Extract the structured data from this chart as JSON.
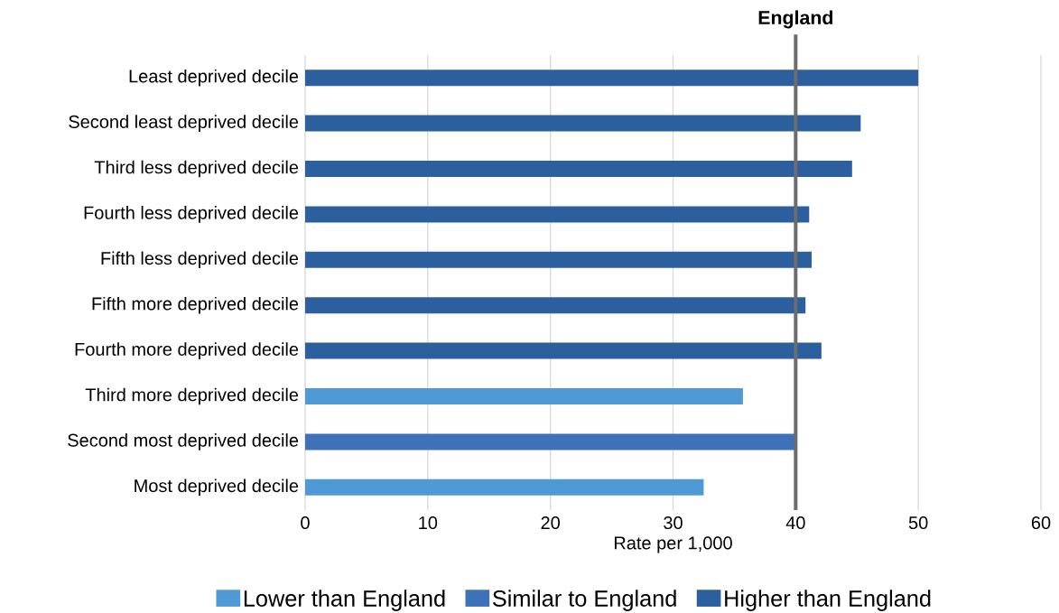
{
  "chart_data": {
    "type": "bar",
    "orientation": "horizontal",
    "xlabel": "Rate per 1,000",
    "categories": [
      "Least deprived decile",
      "Second least deprived decile",
      "Third less deprived decile",
      "Fourth less deprived decile",
      "Fifth less deprived decile",
      "Fifth more deprived decile",
      "Fourth more deprived decile",
      "Third more deprived decile",
      "Second most deprived decile",
      "Most deprived decile"
    ],
    "series": [
      {
        "name": "Lower than England",
        "color": "#4f9ad4",
        "values": [
          null,
          null,
          null,
          null,
          null,
          null,
          null,
          35.7,
          null,
          32.5
        ]
      },
      {
        "name": "Similar to England",
        "color": "#3e72b8",
        "values": [
          null,
          null,
          null,
          null,
          null,
          null,
          null,
          null,
          40.0,
          null
        ]
      },
      {
        "name": "Higher than England",
        "color": "#2b5f9e",
        "values": [
          50.0,
          45.3,
          44.6,
          41.1,
          41.3,
          40.8,
          42.1,
          null,
          null,
          null
        ]
      }
    ],
    "xlim": [
      0,
      60
    ],
    "xticks": [
      0,
      10,
      20,
      30,
      40,
      50,
      60
    ],
    "grid": "x",
    "legend": "bottom",
    "ref_lines": [
      {
        "axis": "x",
        "value": 40,
        "label": "England",
        "color": "#6d6d6d"
      }
    ]
  }
}
